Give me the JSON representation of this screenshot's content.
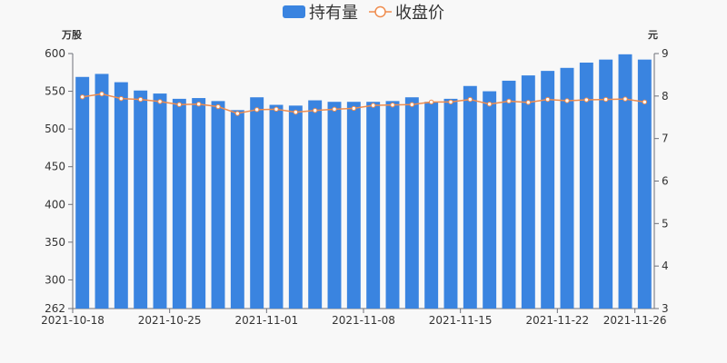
{
  "chart_data": {
    "type": "bar",
    "legend": {
      "placement": "top-center",
      "items": [
        {
          "label": "持有量",
          "kind": "bar",
          "color": "#3a84e0"
        },
        {
          "label": "收盘价",
          "kind": "line",
          "color": "#ef8c4e"
        }
      ]
    },
    "y_left": {
      "unit_label": "万股",
      "range": [
        262,
        600
      ],
      "ticks": [
        262,
        300,
        350,
        400,
        450,
        500,
        550,
        600
      ]
    },
    "y_right": {
      "unit_label": "元",
      "range": [
        3,
        9
      ],
      "ticks": [
        3,
        4,
        5,
        6,
        7,
        8,
        9
      ]
    },
    "x_tick_labels": [
      "2021-10-18",
      "2021-10-25",
      "2021-11-01",
      "2021-11-08",
      "2021-11-15",
      "2021-11-22",
      "2021-11-26"
    ],
    "x_tick_indices": [
      0,
      5,
      10,
      15,
      20,
      25,
      29
    ],
    "categories": [
      "2021-10-18",
      "2021-10-19",
      "2021-10-20",
      "2021-10-21",
      "2021-10-22",
      "2021-10-25",
      "2021-10-26",
      "2021-10-27",
      "2021-10-28",
      "2021-10-29",
      "2021-11-01",
      "2021-11-02",
      "2021-11-03",
      "2021-11-04",
      "2021-11-05",
      "2021-11-08",
      "2021-11-09",
      "2021-11-10",
      "2021-11-11",
      "2021-11-12",
      "2021-11-15",
      "2021-11-16",
      "2021-11-17",
      "2021-11-18",
      "2021-11-19",
      "2021-11-22",
      "2021-11-23",
      "2021-11-24",
      "2021-11-25",
      "2021-11-26"
    ],
    "series": [
      {
        "name": "持有量",
        "type": "bar",
        "axis": "left",
        "values": [
          569,
          573,
          562,
          551,
          547,
          540,
          541,
          537,
          525,
          542,
          532,
          531,
          538,
          536,
          536,
          536,
          537,
          542,
          536,
          540,
          557,
          550,
          564,
          571,
          577,
          581,
          588,
          592,
          599,
          592
        ]
      },
      {
        "name": "收盘价",
        "type": "line",
        "axis": "right",
        "values": [
          7.98,
          8.05,
          7.94,
          7.92,
          7.87,
          7.8,
          7.81,
          7.75,
          7.59,
          7.68,
          7.69,
          7.62,
          7.66,
          7.69,
          7.71,
          7.78,
          7.79,
          7.8,
          7.86,
          7.86,
          7.92,
          7.81,
          7.88,
          7.85,
          7.92,
          7.89,
          7.91,
          7.92,
          7.93,
          7.86
        ]
      }
    ],
    "grid": false
  }
}
